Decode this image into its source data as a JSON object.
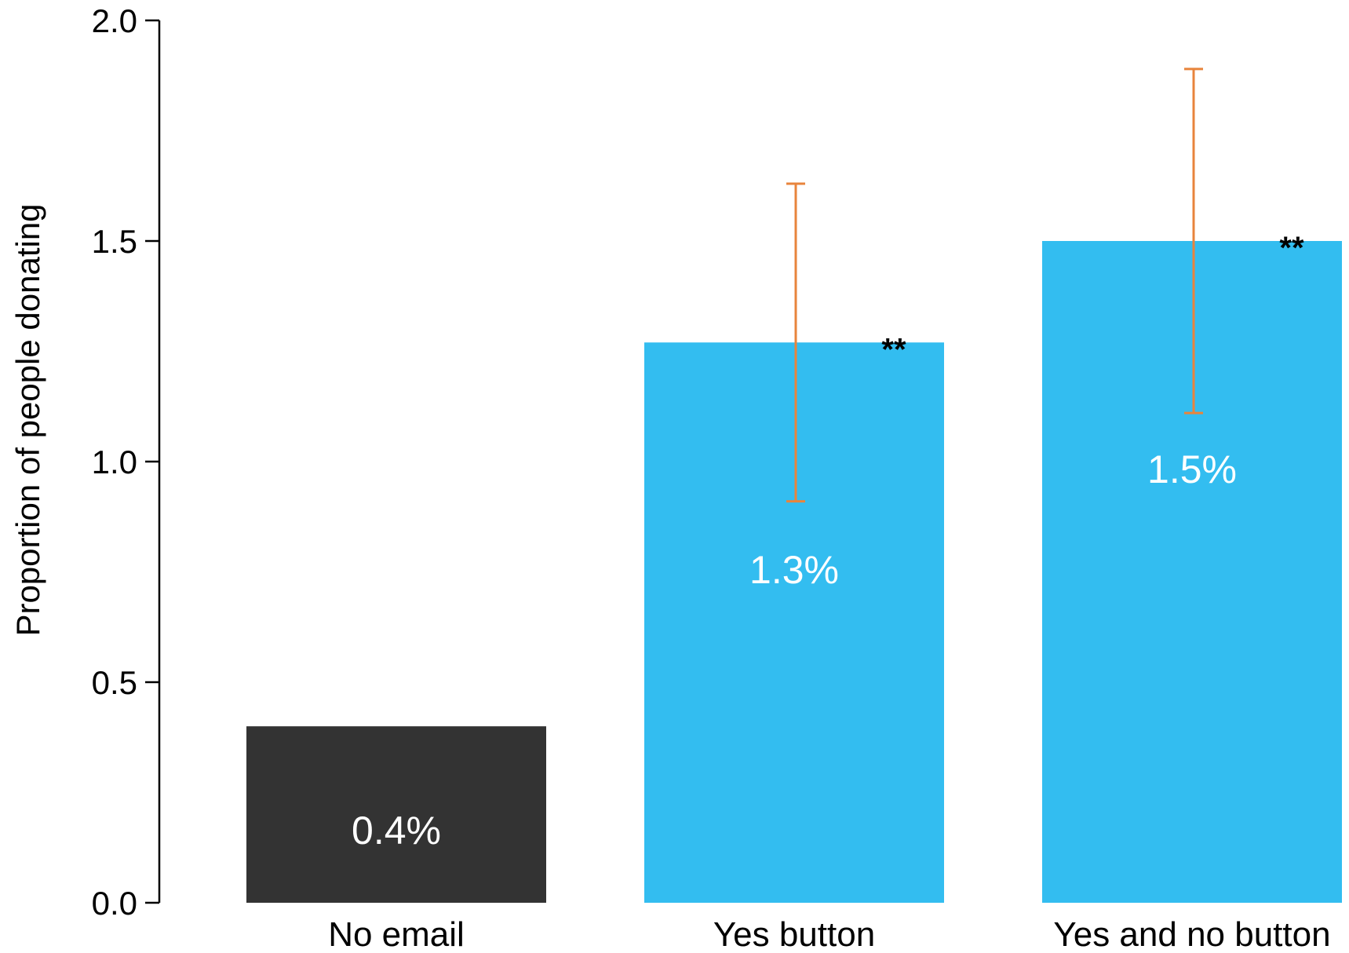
{
  "chart_data": {
    "type": "bar",
    "title": "",
    "xlabel": "",
    "ylabel": "Proportion of people donating",
    "ylim": [
      0,
      2.0
    ],
    "yticks": [
      "0.0",
      "0.5",
      "1.0",
      "1.5",
      "2.0"
    ],
    "yticks_values": [
      0,
      0.5,
      1.0,
      1.5,
      2.0
    ],
    "grid": false,
    "categories": [
      "No email",
      "Yes button",
      "Yes and no button"
    ],
    "values": [
      0.4,
      1.27,
      1.5
    ],
    "value_labels": [
      "0.4%",
      "1.3%",
      "1.5%"
    ],
    "error_low": [
      null,
      0.91,
      1.11
    ],
    "error_high": [
      null,
      1.63,
      1.89
    ],
    "significance": [
      "",
      "**",
      "**"
    ],
    "bar_colors": [
      "#333333",
      "#33bdf0",
      "#33bdf0"
    ],
    "error_color": "#e8843c"
  }
}
